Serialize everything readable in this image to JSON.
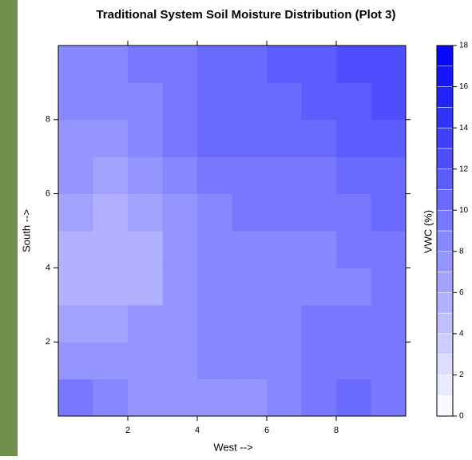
{
  "chart_data": {
    "type": "contour",
    "title": "Traditional System Soil Moisture Distribution (Plot 3)",
    "x_label": "West -->",
    "y_label": "South -->",
    "colorbar_label": "VWC (%)",
    "x": [
      0.5,
      1.5,
      2.5,
      3.5,
      4.5,
      5.5,
      6.5,
      7.5,
      8.5,
      9.5
    ],
    "y": [
      0.5,
      1.5,
      2.5,
      3.5,
      4.5,
      5.5,
      6.5,
      7.5,
      8.5,
      9.5
    ],
    "z": [
      [
        9.5,
        8.5,
        7.5,
        7,
        7,
        7.5,
        8,
        9.5,
        10,
        9.5
      ],
      [
        7.5,
        7.5,
        7.5,
        7.5,
        8,
        8.5,
        8.5,
        9.5,
        9.5,
        9
      ],
      [
        6.5,
        6.5,
        7,
        7.5,
        8,
        8.5,
        8.5,
        9,
        9,
        9
      ],
      [
        5.5,
        5,
        5.5,
        7,
        8,
        8.5,
        8.5,
        8.5,
        8.5,
        9
      ],
      [
        5.5,
        5,
        5.5,
        7,
        8,
        8.5,
        8.5,
        8.5,
        9,
        9.5
      ],
      [
        6,
        5.5,
        6,
        7.5,
        8.5,
        9,
        9,
        9,
        9.5,
        10
      ],
      [
        7,
        6.5,
        7,
        8,
        9,
        9.5,
        9.5,
        9.5,
        10,
        10.5
      ],
      [
        7.5,
        7.5,
        8,
        9,
        10.5,
        10.5,
        10,
        10.5,
        11,
        11.5
      ],
      [
        8,
        8,
        8.5,
        9.5,
        10.5,
        10.5,
        10.5,
        11,
        11.5,
        12
      ],
      [
        8.5,
        8.5,
        9,
        9.5,
        10.5,
        10.5,
        11,
        11.5,
        12,
        12.5
      ]
    ],
    "xlim": [
      0,
      10
    ],
    "ylim": [
      0,
      10
    ],
    "xticks": [
      2,
      4,
      6,
      8
    ],
    "yticks": [
      2,
      4,
      6,
      8
    ],
    "zlim": [
      0,
      18
    ],
    "zticks": [
      0,
      2,
      4,
      6,
      8,
      10,
      12,
      14,
      16,
      18
    ],
    "contour_levels": 18,
    "color_low": "#ffffff",
    "color_high": "#0000ff"
  }
}
